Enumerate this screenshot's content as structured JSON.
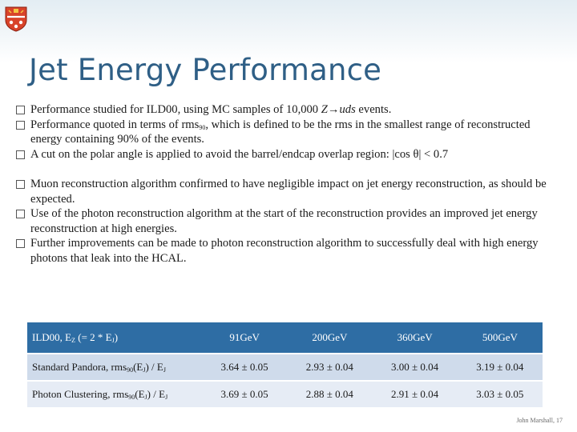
{
  "header": {
    "crest_icon": "university-crest-icon"
  },
  "title": "Jet Energy Performance",
  "bullets_group1": {
    "b1_pre": "Performance studied for ILD00, using MC samples of 10,000 ",
    "b1_z": "Z",
    "b1_arrow": "→",
    "b1_uds": "uds",
    "b1_post": " events.",
    "b2_pre": "Performance quoted in terms of rms",
    "b2_sub": "90",
    "b2_post": ", which is defined to be the rms in the smallest range of reconstructed energy containing 90% of the events.",
    "b3": "A cut on the polar angle is applied to avoid the barrel/endcap overlap region: |cos θ| < 0.7"
  },
  "bullets_group2": {
    "b4": "Muon reconstruction algorithm confirmed to have negligible impact on jet energy reconstruction, as should be expected.",
    "b5": "Use of the photon reconstruction algorithm at the start of the reconstruction provides an improved jet energy reconstruction at high energies.",
    "b6": "Further improvements can be made to photon reconstruction algorithm to successfully deal with high energy photons that leak into the HCAL."
  },
  "table": {
    "header": {
      "label_pre": "ILD00, E",
      "label_sub1": "Z",
      "label_mid": " (= 2 * E",
      "label_sub2": "J",
      "label_post": ")",
      "cols": [
        "91GeV",
        "200GeV",
        "360GeV",
        "500GeV"
      ]
    },
    "rows": [
      {
        "label_pre": "Standard Pandora, rms",
        "sub1": "90",
        "mid": "(E",
        "sub2": "J",
        "mid2": ") / E",
        "sub3": "J",
        "values": [
          "3.64 ± 0.05",
          "2.93 ± 0.04",
          "3.00 ± 0.04",
          "3.19 ± 0.04"
        ]
      },
      {
        "label_pre": "Photon Clustering, rms",
        "sub1": "90",
        "mid": "(E",
        "sub2": "J",
        "mid2": ") / E",
        "sub3": "J",
        "values": [
          "3.69 ± 0.05",
          "2.88 ± 0.04",
          "2.91 ± 0.04",
          "3.03 ± 0.05"
        ]
      }
    ]
  },
  "footer": "John Marshall,  17",
  "colors": {
    "title": "#2f5f86",
    "table_header": "#2e6da4",
    "row1": "#cfdbeb",
    "row2": "#e6ecf5"
  }
}
